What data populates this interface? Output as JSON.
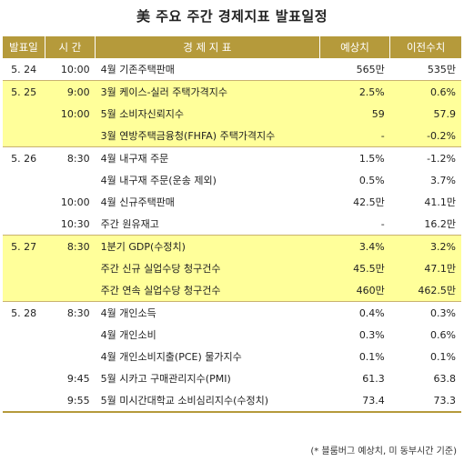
{
  "title": "美 주요 주간 경제지표 발표일정",
  "headers": {
    "date": "발표일",
    "time": "시 간",
    "indicator": "경 제 지 표",
    "estimate": "예상치",
    "previous": "이전수치"
  },
  "rows": [
    {
      "date": "5. 24",
      "time": "10:00",
      "indicator": "4월 기존주택판매",
      "estimate": "565만",
      "previous": "535만"
    },
    {
      "date": "5. 25",
      "time": "9:00",
      "indicator": "3월 케이스-실러 주택가격지수",
      "estimate": "2.5%",
      "previous": "0.6%"
    },
    {
      "date": "",
      "time": "10:00",
      "indicator": "5월 소비자신뢰지수",
      "estimate": "59",
      "previous": "57.9"
    },
    {
      "date": "",
      "time": "",
      "indicator": "3월 연방주택금융청(FHFA) 주택가격지수",
      "estimate": "-",
      "previous": "-0.2%"
    },
    {
      "date": "5. 26",
      "time": "8:30",
      "indicator": "4월 내구재 주문",
      "estimate": "1.5%",
      "previous": "-1.2%"
    },
    {
      "date": "",
      "time": "",
      "indicator": "4월 내구재 주문(운송 제외)",
      "estimate": "0.5%",
      "previous": "3.7%"
    },
    {
      "date": "",
      "time": "10:00",
      "indicator": "4월 신규주택판매",
      "estimate": "42.5만",
      "previous": "41.1만"
    },
    {
      "date": "",
      "time": "10:30",
      "indicator": "주간 원유재고",
      "estimate": "-",
      "previous": "16.2만"
    },
    {
      "date": "5. 27",
      "time": "8:30",
      "indicator": "1분기 GDP(수정치)",
      "estimate": "3.4%",
      "previous": "3.2%"
    },
    {
      "date": "",
      "time": "",
      "indicator": "주간 신규 실업수당 청구건수",
      "estimate": "45.5만",
      "previous": "47.1만"
    },
    {
      "date": "",
      "time": "",
      "indicator": "주간 연속 실업수당 청구건수",
      "estimate": "460만",
      "previous": "462.5만"
    },
    {
      "date": "5. 28",
      "time": "8:30",
      "indicator": "4월 개인소득",
      "estimate": "0.4%",
      "previous": "0.3%"
    },
    {
      "date": "",
      "time": "",
      "indicator": "4월 개인소비",
      "estimate": "0.3%",
      "previous": "0.6%"
    },
    {
      "date": "",
      "time": "",
      "indicator": "4월 개인소비지출(PCE) 물가지수",
      "estimate": "0.1%",
      "previous": "0.1%"
    },
    {
      "date": "",
      "time": "9:45",
      "indicator": "5월 시카고 구매관리지수(PMI)",
      "estimate": "61.3",
      "previous": "63.8"
    },
    {
      "date": "",
      "time": "9:55",
      "indicator": "5월 미시간대학교 소비심리지수(수정치)",
      "estimate": "73.4",
      "previous": "73.3"
    }
  ],
  "footnote": "(* 블룸버그 예상치, 미 동부시간 기준)",
  "colors": {
    "header_bg": "#b59a3b",
    "highlight_row": "#ffff9a"
  }
}
